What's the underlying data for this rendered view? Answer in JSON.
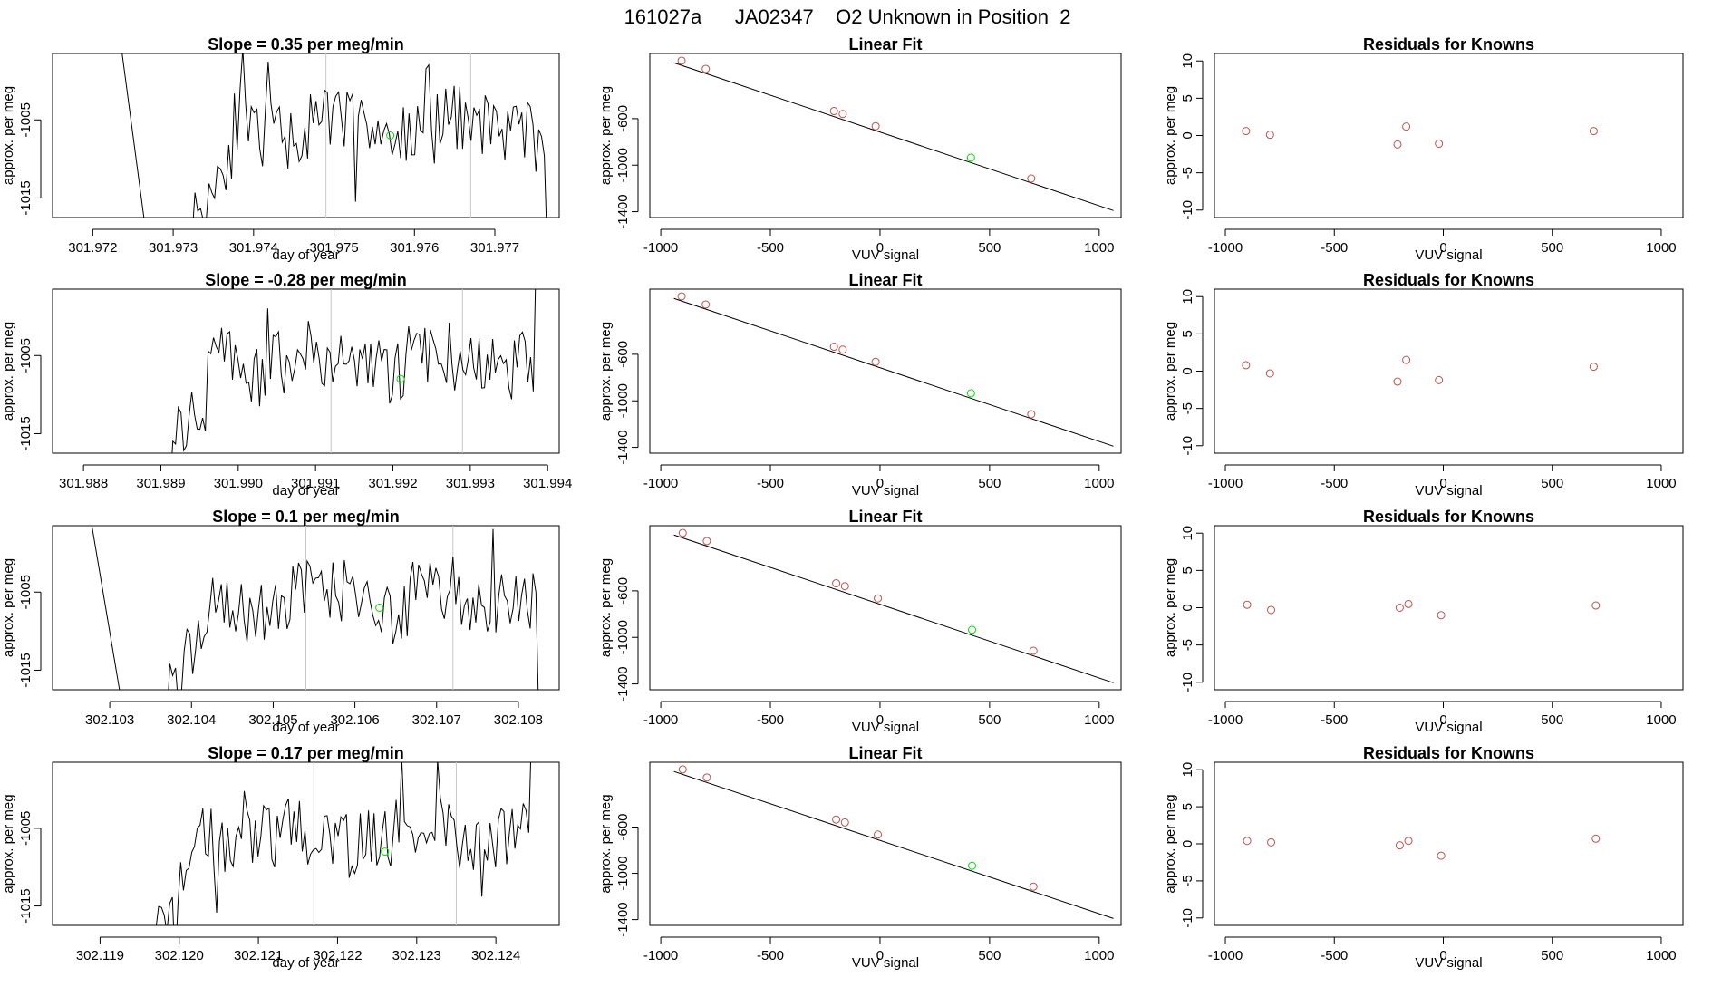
{
  "figure_title": "161027a      JA02347    O2 Unknown in Position  2",
  "chart_data": [
    {
      "type": "line",
      "row": 1,
      "panel": "time-series",
      "title": "Slope =  0.35  per meg/min",
      "xlabel": "day of year",
      "ylabel": "approx. per meg",
      "xlim": [
        301.9715,
        301.9778
      ],
      "ylim": [
        -1017.5,
        -996.5
      ],
      "yticks": [
        -1005,
        -1015
      ],
      "xticks": [
        "301.972",
        "301.973",
        "301.974",
        "301.975",
        "301.976",
        "301.977"
      ],
      "vlines": [
        301.9749,
        301.9767
      ],
      "marker": {
        "x": 301.9757,
        "y": -1007,
        "color": "#00dd00"
      },
      "segments": [
        [
          301.9723,
          301.9727
        ],
        [
          301.9732,
          301.97765
        ]
      ],
      "seed": 11
    },
    {
      "type": "scatter",
      "row": 1,
      "panel": "linear-fit",
      "title": "Linear Fit",
      "xlabel": "VUV signal",
      "ylabel": "approx. per meg",
      "xlim": [
        -1050,
        1100
      ],
      "ylim": [
        -1450,
        -40
      ],
      "yticks": [
        -600,
        -1000,
        -1400
      ],
      "xticks": [
        -1000,
        -500,
        0,
        500,
        1000
      ],
      "line": [
        [
          -940,
          -120
        ],
        [
          1065,
          -1390
        ]
      ],
      "points": [
        [
          -905,
          -102
        ],
        [
          -795,
          -172
        ],
        [
          -210,
          -535
        ],
        [
          -170,
          -560
        ],
        [
          -20,
          -665
        ],
        [
          415,
          -935
        ],
        [
          690,
          -1115
        ]
      ],
      "known_color": "#c0504d",
      "unknown_color": "#00dd00",
      "unknown_index": 5
    },
    {
      "type": "scatter",
      "row": 1,
      "panel": "residuals",
      "title": "Residuals for Knowns",
      "xlabel": "VUV signal",
      "ylabel": "approx. per meg",
      "xlim": [
        -1050,
        1100
      ],
      "ylim": [
        -11,
        11
      ],
      "yticks": [
        10,
        5,
        0,
        -5,
        -10
      ],
      "xticks": [
        -1000,
        -500,
        0,
        500,
        1000
      ],
      "points": [
        [
          -905,
          0.6
        ],
        [
          -795,
          0.1
        ],
        [
          -210,
          -1.2
        ],
        [
          -170,
          1.2
        ],
        [
          -20,
          -1.1
        ],
        [
          690,
          0.6
        ]
      ],
      "color": "#c0504d"
    },
    {
      "type": "line",
      "row": 2,
      "panel": "time-series",
      "title": "Slope =  -0.28  per meg/min",
      "xlabel": "day of year",
      "ylabel": "approx. per meg",
      "xlim": [
        301.9876,
        301.99415
      ],
      "ylim": [
        -1017.5,
        -996.5
      ],
      "yticks": [
        -1005,
        -1015
      ],
      "xticks": [
        "301.988",
        "301.989",
        "301.990",
        "301.991",
        "301.992",
        "301.993",
        "301.994"
      ],
      "vlines": [
        301.9912,
        301.9929
      ],
      "marker": {
        "x": 301.9921,
        "y": -1008,
        "color": "#00dd00"
      },
      "segments": [
        [
          301.98905,
          301.99385
        ]
      ],
      "seed": 23
    },
    {
      "type": "scatter",
      "row": 2,
      "panel": "linear-fit",
      "title": "Linear Fit",
      "xlabel": "VUV signal",
      "ylabel": "approx. per meg",
      "xlim": [
        -1050,
        1100
      ],
      "ylim": [
        -1450,
        -40
      ],
      "yticks": [
        -600,
        -1000,
        -1400
      ],
      "xticks": [
        -1000,
        -500,
        0,
        500,
        1000
      ],
      "line": [
        [
          -940,
          -120
        ],
        [
          1065,
          -1390
        ]
      ],
      "points": [
        [
          -905,
          -102
        ],
        [
          -795,
          -172
        ],
        [
          -210,
          -535
        ],
        [
          -170,
          -560
        ],
        [
          -20,
          -665
        ],
        [
          415,
          -935
        ],
        [
          690,
          -1115
        ]
      ],
      "known_color": "#c0504d",
      "unknown_color": "#00dd00",
      "unknown_index": 5
    },
    {
      "type": "scatter",
      "row": 2,
      "panel": "residuals",
      "title": "Residuals for Knowns",
      "xlabel": "VUV signal",
      "ylabel": "approx. per meg",
      "xlim": [
        -1050,
        1100
      ],
      "ylim": [
        -11,
        11
      ],
      "yticks": [
        10,
        5,
        0,
        -5,
        -10
      ],
      "xticks": [
        -1000,
        -500,
        0,
        500,
        1000
      ],
      "points": [
        [
          -905,
          0.8
        ],
        [
          -795,
          -0.3
        ],
        [
          -210,
          -1.4
        ],
        [
          -170,
          1.5
        ],
        [
          -20,
          -1.2
        ],
        [
          690,
          0.6
        ]
      ],
      "color": "#c0504d"
    },
    {
      "type": "line",
      "row": 3,
      "panel": "time-series",
      "title": "Slope =  0.1  per meg/min",
      "xlabel": "day of year",
      "ylabel": "approx. per meg",
      "xlim": [
        302.1023,
        302.1085
      ],
      "ylim": [
        -1017.5,
        -996.5
      ],
      "yticks": [
        -1005,
        -1015
      ],
      "xticks": [
        "302.103",
        "302.104",
        "302.105",
        "302.106",
        "302.107",
        "302.108"
      ],
      "vlines": [
        302.1054,
        302.1072
      ],
      "marker": {
        "x": 302.1063,
        "y": -1007,
        "color": "#00dd00"
      },
      "segments": [
        [
          302.1027,
          302.1032
        ],
        [
          302.1037,
          302.10825
        ]
      ],
      "seed": 37
    },
    {
      "type": "scatter",
      "row": 3,
      "panel": "linear-fit",
      "title": "Linear Fit",
      "xlabel": "VUV signal",
      "ylabel": "approx. per meg",
      "xlim": [
        -1050,
        1100
      ],
      "ylim": [
        -1450,
        -40
      ],
      "yticks": [
        -600,
        -1000,
        -1400
      ],
      "xticks": [
        -1000,
        -500,
        0,
        500,
        1000
      ],
      "line": [
        [
          -940,
          -120
        ],
        [
          1065,
          -1390
        ]
      ],
      "points": [
        [
          -900,
          -102
        ],
        [
          -790,
          -172
        ],
        [
          -200,
          -535
        ],
        [
          -160,
          -560
        ],
        [
          -10,
          -665
        ],
        [
          420,
          -935
        ],
        [
          700,
          -1115
        ]
      ],
      "known_color": "#c0504d",
      "unknown_color": "#00dd00",
      "unknown_index": 5
    },
    {
      "type": "scatter",
      "row": 3,
      "panel": "residuals",
      "title": "Residuals for Knowns",
      "xlabel": "VUV signal",
      "ylabel": "approx. per meg",
      "xlim": [
        -1050,
        1100
      ],
      "ylim": [
        -11,
        11
      ],
      "yticks": [
        10,
        5,
        0,
        -5,
        -10
      ],
      "xticks": [
        -1000,
        -500,
        0,
        500,
        1000
      ],
      "points": [
        [
          -900,
          0.4
        ],
        [
          -790,
          -0.3
        ],
        [
          -200,
          0.0
        ],
        [
          -160,
          0.5
        ],
        [
          -10,
          -1.0
        ],
        [
          700,
          0.3
        ]
      ],
      "color": "#c0504d"
    },
    {
      "type": "line",
      "row": 4,
      "panel": "time-series",
      "title": "Slope =  0.17  per meg/min",
      "xlabel": "day of year",
      "ylabel": "approx. per meg",
      "xlim": [
        302.1184,
        302.1248
      ],
      "ylim": [
        -1017.5,
        -996.5
      ],
      "yticks": [
        -1005,
        -1015
      ],
      "xticks": [
        "302.119",
        "302.120",
        "302.121",
        "302.122",
        "302.123",
        "302.124"
      ],
      "vlines": [
        302.1217,
        302.1235
      ],
      "marker": {
        "x": 302.1226,
        "y": -1008,
        "color": "#00dd00"
      },
      "segments": [
        [
          302.1196,
          302.12445
        ]
      ],
      "seed": 51
    },
    {
      "type": "scatter",
      "row": 4,
      "panel": "linear-fit",
      "title": "Linear Fit",
      "xlabel": "VUV signal",
      "ylabel": "approx. per meg",
      "xlim": [
        -1050,
        1100
      ],
      "ylim": [
        -1450,
        -40
      ],
      "yticks": [
        -600,
        -1000,
        -1400
      ],
      "xticks": [
        -1000,
        -500,
        0,
        500,
        1000
      ],
      "line": [
        [
          -940,
          -120
        ],
        [
          1065,
          -1390
        ]
      ],
      "points": [
        [
          -900,
          -102
        ],
        [
          -790,
          -172
        ],
        [
          -200,
          -535
        ],
        [
          -160,
          -560
        ],
        [
          -10,
          -665
        ],
        [
          420,
          -935
        ],
        [
          700,
          -1115
        ]
      ],
      "known_color": "#c0504d",
      "unknown_color": "#00dd00",
      "unknown_index": 5
    },
    {
      "type": "scatter",
      "row": 4,
      "panel": "residuals",
      "title": "Residuals for Knowns",
      "xlabel": "VUV signal",
      "ylabel": "approx. per meg",
      "xlim": [
        -1050,
        1100
      ],
      "ylim": [
        -11,
        11
      ],
      "yticks": [
        10,
        5,
        0,
        -5,
        -10
      ],
      "xticks": [
        -1000,
        -500,
        0,
        500,
        1000
      ],
      "points": [
        [
          -900,
          0.4
        ],
        [
          -790,
          0.2
        ],
        [
          -200,
          -0.2
        ],
        [
          -160,
          0.4
        ],
        [
          -10,
          -1.6
        ],
        [
          700,
          0.7
        ]
      ],
      "color": "#c0504d"
    }
  ]
}
